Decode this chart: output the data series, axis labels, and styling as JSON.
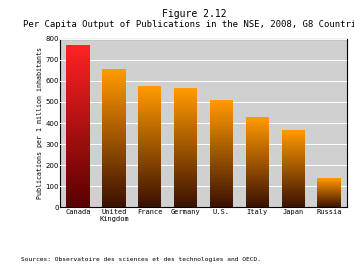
{
  "title_line1": "Figure 2.12",
  "title_line2": "Per Capita Output of Publications in the NSE, 2008, G8 Countries",
  "categories": [
    "Canada",
    "United\nKingdom",
    "France",
    "Germany",
    "U.S.",
    "Italy",
    "Japan",
    "Russia"
  ],
  "values": [
    770,
    655,
    575,
    565,
    507,
    427,
    368,
    140
  ],
  "ylabel": "Publications per 1 million inhabitants",
  "ylim": [
    0,
    800
  ],
  "yticks": [
    0,
    100,
    200,
    300,
    400,
    500,
    600,
    700,
    800
  ],
  "source": "Sources: Observatoire des sciences et des technologies and OECD.",
  "background_color": "#ffffff",
  "plot_bg_color": "#d0d0d0",
  "grid_color": "#ffffff",
  "border_color": "#000000",
  "canada_grad_bottom": "#5a0000",
  "canada_grad_top": "#ff2222",
  "others_grad_bottom": "#3a1000",
  "others_grad_top": "#ff9900",
  "title_fontsize": 7,
  "subtitle_fontsize": 6.5,
  "tick_fontsize": 5,
  "ylabel_fontsize": 4.8,
  "source_fontsize": 4.5,
  "bar_width": 0.65
}
